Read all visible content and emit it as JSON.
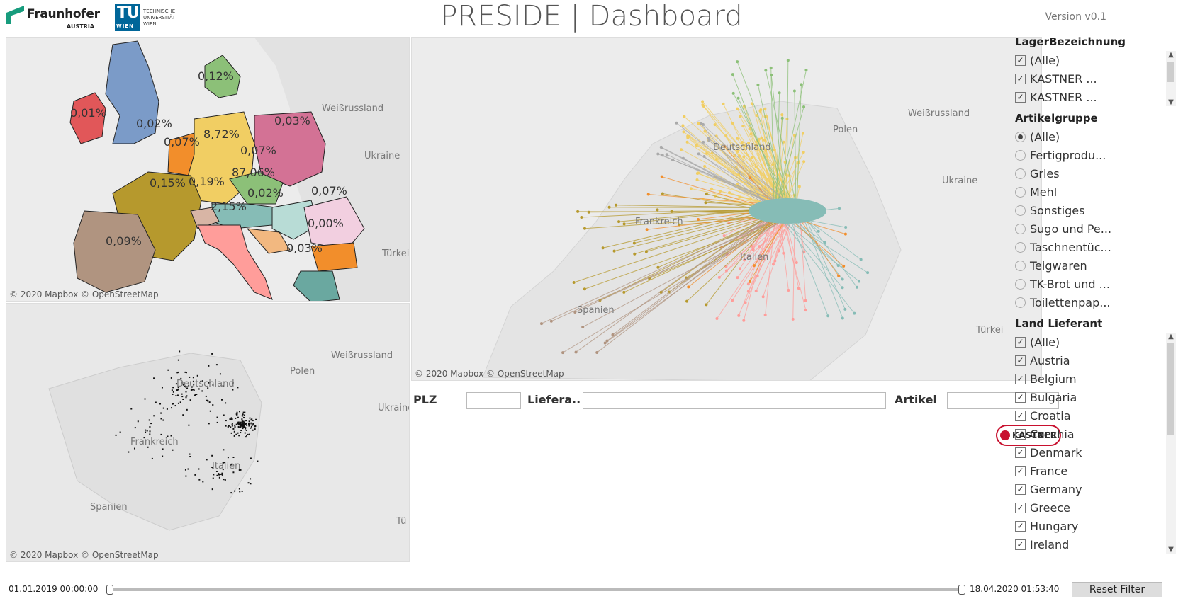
{
  "header": {
    "title": "PRESIDE | Dashboard",
    "version": "Version v0.1",
    "fraunhofer_name": "Fraunhofer",
    "fraunhofer_sub": "AUSTRIA",
    "tu_letters": "TU",
    "tu_wien": "WIEN",
    "tu_line1": "TECHNISCHE",
    "tu_line2": "UNIVERSITÄT",
    "tu_line3": "WIEN"
  },
  "map_credit": "© 2020 Mapbox © OpenStreetMap",
  "choropleth": {
    "labels": [
      "0,12%",
      "0,01%",
      "0,02%",
      "0,03%",
      "0,07%",
      "8,72%",
      "0,07%",
      "87,06%",
      "0,15%",
      "0,19%",
      "0,02%",
      "0,07%",
      "2,15%",
      "0,00%",
      "0,09%",
      "0,03%"
    ],
    "place_names": [
      "Weißrussland",
      "Ukraine",
      "Türkei"
    ]
  },
  "flow_map": {
    "place_names": [
      "Polen",
      "Weißrussland",
      "Ukraine",
      "Frankreich",
      "Italien",
      "Spanien",
      "Türkei",
      "Deutschland"
    ]
  },
  "dot_map": {
    "place_names": [
      "Polen",
      "Weißrussland",
      "Deutschland",
      "Frankreich",
      "Italien",
      "Spanien",
      "Ukraine",
      "Tü"
    ]
  },
  "search": {
    "plz_label": "PLZ",
    "lieferant_label": "Liefera..",
    "artikel_label": "Artikel"
  },
  "brand": {
    "kastner": "KASTNER"
  },
  "filters": {
    "lager": {
      "title": "LagerBezeichnung",
      "items": [
        "(Alle)",
        "KASTNER ...",
        "KASTNER ..."
      ]
    },
    "artikel": {
      "title": "Artikelgruppe",
      "items": [
        "(Alle)",
        "Fertigprodu...",
        "Gries",
        "Mehl",
        "Sonstiges",
        "Sugo und Pe...",
        "Taschnentüc...",
        "Teigwaren",
        "TK-Brot und ...",
        "Toilettenpap..."
      ]
    },
    "land": {
      "title": "Land Lieferant",
      "items": [
        "(Alle)",
        "Austria",
        "Belgium",
        "Bulgaria",
        "Croatia",
        "Czechia",
        "Denmark",
        "France",
        "Germany",
        "Greece",
        "Hungary",
        "Ireland"
      ]
    }
  },
  "timeline": {
    "start": "01.01.2019 00:00:00",
    "end": "18.04.2020 01:53:40"
  },
  "reset_label": "Reset Filter",
  "colors": {
    "austria": "#86bcb6",
    "germany": "#f1ce63",
    "italy": "#ff9d9a",
    "france": "#b6992d",
    "poland": "#d37295",
    "uk": "#7b9bc8",
    "ireland": "#e15759",
    "spain": "#b09480",
    "czech": "#8cc078",
    "hungary": "#cce8c0",
    "romania": "#f2cfe0",
    "bulgaria": "#f28e2b",
    "greece": "#6aa8a0",
    "accent": "#c8102e"
  }
}
